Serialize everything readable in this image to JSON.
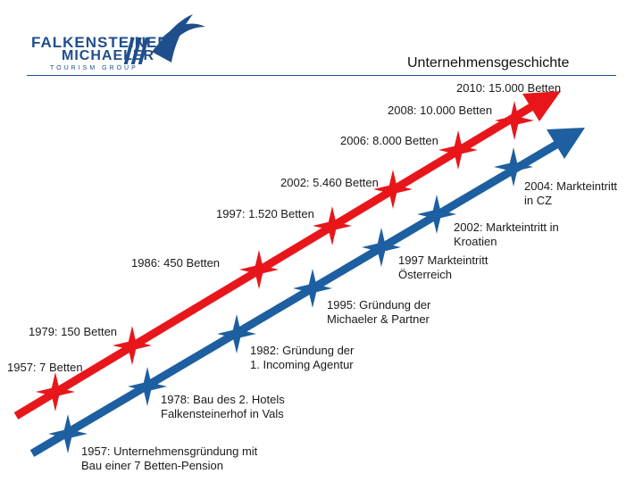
{
  "logo": {
    "line1": "FALKENSTEINER",
    "line2": "MICHAELER",
    "line3": "TOURISM GROUP"
  },
  "title": "Unternehmensgeschichte",
  "colors": {
    "red": "#e8161b",
    "blue": "#1d5fa0",
    "brand": "#1f4e8c"
  },
  "red_timeline": [
    {
      "label": "1957: 7 Betten"
    },
    {
      "label": "1979: 150 Betten"
    },
    {
      "label": "1986: 450 Betten"
    },
    {
      "label": "1997: 1.520 Betten"
    },
    {
      "label": "2002: 5.460 Betten"
    },
    {
      "label": "2006: 8.000 Betten"
    },
    {
      "label": "2008: 10.000 Betten"
    },
    {
      "label": "2010: 15.000 Betten"
    }
  ],
  "blue_timeline": [
    {
      "line1": "1957: Unternehmensgründung mit",
      "line2": "Bau einer 7 Betten-Pension"
    },
    {
      "line1": "1978: Bau des 2. Hotels",
      "line2": "Falkensteinerhof in Vals"
    },
    {
      "line1": "1982: Gründung der",
      "line2": "1. Incoming Agentur"
    },
    {
      "line1": "1995: Gründung der",
      "line2": "Michaeler & Partner"
    },
    {
      "line1": "1997 Markteintritt",
      "line2": "Österreich"
    },
    {
      "line1": "2002: Markteintritt in",
      "line2": "Kroatien"
    },
    {
      "line1": "2004: Markteintritt",
      "line2": "in CZ"
    }
  ]
}
